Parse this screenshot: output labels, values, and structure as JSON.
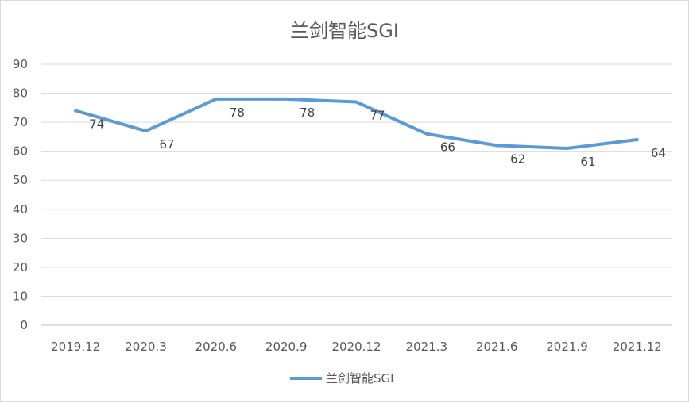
{
  "chart_data": {
    "type": "line",
    "title": "兰剑智能SGI",
    "categories": [
      "2019.12",
      "2020.3",
      "2020.6",
      "2020.9",
      "2020.12",
      "2021.3",
      "2021.6",
      "2021.9",
      "2021.12"
    ],
    "series": [
      {
        "name": "兰剑智能SGI",
        "values": [
          74,
          67,
          78,
          78,
          77,
          66,
          62,
          61,
          64
        ],
        "color": "#5b9bd5"
      }
    ],
    "ylim": [
      0,
      90
    ],
    "yticks": [
      0,
      10,
      20,
      30,
      40,
      50,
      60,
      70,
      80,
      90
    ],
    "xlabel": "",
    "ylabel": "",
    "grid": true,
    "data_labels": true,
    "legend": "bottom"
  }
}
